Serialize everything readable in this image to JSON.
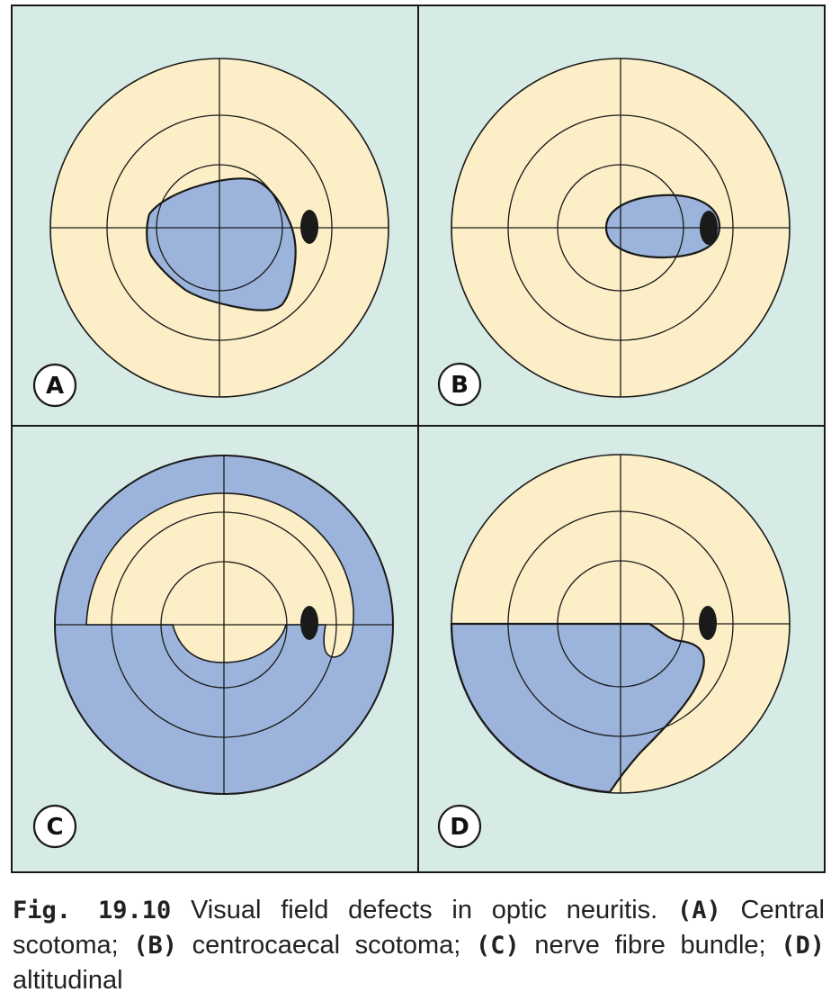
{
  "colors": {
    "background": "#d6eae6",
    "field": "#fcefc7",
    "defect": "#9cb4dc",
    "line": "#1a1a1a",
    "blind_spot": "#1a1a1a"
  },
  "panels": [
    {
      "label": "A"
    },
    {
      "label": "B"
    },
    {
      "label": "C"
    },
    {
      "label": "D"
    }
  ],
  "caption": {
    "fig_label": "Fig. 19.10",
    "text1": " Visual field defects in optic neuritis. ",
    "a_label": "(A)",
    "a_text": " Central scotoma; ",
    "b_label": "(B)",
    "b_text": " centrocaecal scotoma; ",
    "c_label": "(C)",
    "c_text": " nerve fibre bundle; ",
    "d_label": "(D)",
    "d_text": " altitudinal"
  }
}
